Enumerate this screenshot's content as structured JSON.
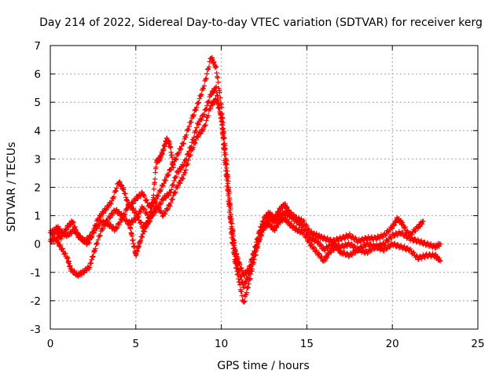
{
  "chart_data": {
    "type": "scatter",
    "title": "Day 214 of 2022, Sidereal Day-to-day VTEC variation (SDTVAR) for receiver kerg",
    "xlabel": "GPS time / hours",
    "ylabel": "SDTVAR / TECUs",
    "xlim": [
      0,
      25
    ],
    "ylim": [
      -3,
      7
    ],
    "xticks": [
      0,
      5,
      10,
      15,
      20,
      25
    ],
    "yticks": [
      -3,
      -2,
      -1,
      0,
      1,
      2,
      3,
      4,
      5,
      6,
      7
    ],
    "grid": true,
    "marker": "+",
    "color": "#ff0000",
    "series": [
      {
        "name": "track-a",
        "points": [
          [
            0.0,
            0.4
          ],
          [
            0.3,
            0.5
          ],
          [
            0.6,
            0.2
          ],
          [
            1.0,
            0.6
          ],
          [
            1.3,
            0.8
          ],
          [
            1.6,
            0.3
          ],
          [
            2.0,
            0.1
          ],
          [
            2.4,
            0.3
          ],
          [
            2.8,
            0.9
          ],
          [
            3.2,
            1.2
          ],
          [
            3.6,
            1.5
          ],
          [
            4.0,
            2.2
          ],
          [
            4.3,
            1.9
          ],
          [
            4.6,
            1.3
          ],
          [
            5.0,
            1.6
          ],
          [
            5.4,
            1.8
          ],
          [
            5.8,
            1.3
          ],
          [
            6.2,
            1.6
          ],
          [
            6.6,
            2.1
          ],
          [
            7.0,
            2.6
          ],
          [
            7.4,
            3.1
          ],
          [
            7.8,
            3.6
          ],
          [
            8.2,
            4.3
          ],
          [
            8.6,
            4.9
          ],
          [
            9.0,
            5.6
          ],
          [
            9.4,
            6.6
          ],
          [
            9.7,
            6.2
          ],
          [
            10.0,
            4.9
          ],
          [
            10.2,
            3.6
          ],
          [
            10.4,
            2.2
          ],
          [
            10.6,
            0.8
          ],
          [
            10.8,
            -0.2
          ],
          [
            11.0,
            -0.6
          ],
          [
            11.3,
            -1.1
          ],
          [
            11.6,
            -0.9
          ],
          [
            11.9,
            -0.3
          ],
          [
            12.2,
            0.4
          ],
          [
            12.5,
            0.9
          ],
          [
            12.8,
            1.1
          ],
          [
            13.1,
            0.9
          ],
          [
            13.4,
            1.2
          ],
          [
            13.7,
            1.4
          ],
          [
            14.0,
            1.1
          ],
          [
            14.4,
            0.9
          ],
          [
            14.8,
            0.8
          ],
          [
            15.2,
            0.4
          ],
          [
            15.6,
            0.3
          ],
          [
            16.0,
            0.2
          ],
          [
            16.5,
            0.1
          ],
          [
            17.0,
            0.2
          ],
          [
            17.5,
            0.3
          ],
          [
            18.0,
            0.1
          ],
          [
            18.5,
            0.2
          ],
          [
            19.0,
            0.2
          ],
          [
            19.5,
            0.3
          ],
          [
            20.0,
            0.6
          ],
          [
            20.3,
            0.9
          ],
          [
            20.6,
            0.7
          ],
          [
            21.0,
            0.3
          ],
          [
            21.5,
            0.6
          ],
          [
            21.8,
            0.8
          ]
        ]
      },
      {
        "name": "track-b",
        "points": [
          [
            0.0,
            0.1
          ],
          [
            0.3,
            0.2
          ],
          [
            0.6,
            -0.1
          ],
          [
            1.0,
            -0.5
          ],
          [
            1.2,
            -0.9
          ],
          [
            1.6,
            -1.1
          ],
          [
            1.9,
            -1.0
          ],
          [
            2.3,
            -0.8
          ],
          [
            2.6,
            -0.2
          ],
          [
            3.0,
            0.5
          ],
          [
            3.4,
            0.9
          ],
          [
            3.8,
            1.2
          ],
          [
            4.2,
            1.0
          ],
          [
            4.6,
            0.7
          ],
          [
            5.0,
            0.9
          ],
          [
            5.4,
            1.3
          ],
          [
            5.8,
            0.9
          ],
          [
            6.2,
            1.2
          ],
          [
            6.6,
            1.6
          ],
          [
            7.0,
            1.8
          ],
          [
            7.4,
            2.5
          ],
          [
            7.8,
            2.8
          ],
          [
            8.2,
            3.4
          ],
          [
            8.6,
            4.2
          ],
          [
            9.0,
            4.6
          ],
          [
            9.4,
            5.3
          ],
          [
            9.7,
            5.5
          ],
          [
            10.0,
            4.4
          ],
          [
            10.2,
            3.0
          ],
          [
            10.4,
            1.7
          ],
          [
            10.6,
            0.3
          ],
          [
            10.8,
            -0.6
          ],
          [
            11.0,
            -1.2
          ],
          [
            11.3,
            -2.1
          ],
          [
            11.6,
            -1.4
          ],
          [
            11.9,
            -0.6
          ],
          [
            12.2,
            0.1
          ],
          [
            12.5,
            0.6
          ],
          [
            12.8,
            0.7
          ],
          [
            13.1,
            0.5
          ],
          [
            13.4,
            0.8
          ],
          [
            13.7,
            0.9
          ],
          [
            14.0,
            0.7
          ],
          [
            14.4,
            0.5
          ],
          [
            14.8,
            0.4
          ],
          [
            15.2,
            0.0
          ],
          [
            15.6,
            -0.3
          ],
          [
            16.0,
            -0.6
          ],
          [
            16.3,
            -0.3
          ],
          [
            16.7,
            -0.1
          ],
          [
            17.0,
            -0.3
          ],
          [
            17.5,
            -0.4
          ],
          [
            18.0,
            -0.2
          ],
          [
            18.5,
            -0.3
          ],
          [
            19.0,
            -0.1
          ],
          [
            19.5,
            -0.2
          ],
          [
            20.0,
            0.0
          ],
          [
            20.5,
            -0.1
          ],
          [
            21.0,
            -0.2
          ],
          [
            21.5,
            -0.5
          ],
          [
            22.0,
            -0.4
          ],
          [
            22.5,
            -0.4
          ],
          [
            22.8,
            -0.6
          ]
        ]
      },
      {
        "name": "track-c",
        "points": [
          [
            0.1,
            0.3
          ],
          [
            0.4,
            0.6
          ],
          [
            0.7,
            0.4
          ],
          [
            1.0,
            0.3
          ],
          [
            1.4,
            0.5
          ],
          [
            1.8,
            0.2
          ],
          [
            2.2,
            0.0
          ],
          [
            2.6,
            0.5
          ],
          [
            3.0,
            0.8
          ],
          [
            3.4,
            0.7
          ],
          [
            3.8,
            0.5
          ],
          [
            4.2,
            0.9
          ],
          [
            4.6,
            1.4
          ],
          [
            5.0,
            1.1
          ],
          [
            5.4,
            0.6
          ],
          [
            5.8,
            0.8
          ],
          [
            6.2,
            1.4
          ],
          [
            6.6,
            1.0
          ],
          [
            7.0,
            1.4
          ],
          [
            7.4,
            2.0
          ],
          [
            7.8,
            2.4
          ],
          [
            8.2,
            3.2
          ],
          [
            8.6,
            3.8
          ],
          [
            9.0,
            4.1
          ],
          [
            9.4,
            4.9
          ],
          [
            9.7,
            5.1
          ],
          [
            10.0,
            4.5
          ],
          [
            10.2,
            3.3
          ],
          [
            10.4,
            2.0
          ],
          [
            10.6,
            0.6
          ],
          [
            10.8,
            -0.4
          ],
          [
            11.0,
            -0.9
          ],
          [
            11.3,
            -1.5
          ],
          [
            11.6,
            -1.1
          ],
          [
            11.9,
            -0.4
          ],
          [
            12.2,
            0.2
          ],
          [
            12.5,
            0.7
          ],
          [
            12.8,
            0.9
          ],
          [
            13.1,
            0.8
          ],
          [
            13.4,
            1.0
          ],
          [
            13.7,
            1.1
          ],
          [
            14.0,
            1.0
          ],
          [
            14.4,
            0.8
          ],
          [
            14.8,
            0.6
          ],
          [
            15.2,
            0.2
          ],
          [
            15.6,
            0.1
          ],
          [
            16.0,
            -0.2
          ],
          [
            16.5,
            0.0
          ],
          [
            17.0,
            -0.1
          ],
          [
            17.5,
            0.0
          ],
          [
            18.0,
            -0.2
          ],
          [
            18.5,
            0.0
          ],
          [
            19.0,
            -0.1
          ],
          [
            19.5,
            0.0
          ],
          [
            20.0,
            0.3
          ],
          [
            20.5,
            0.4
          ],
          [
            21.0,
            0.2
          ],
          [
            21.5,
            0.1
          ],
          [
            22.0,
            0.0
          ],
          [
            22.5,
            -0.1
          ],
          [
            22.8,
            0.0
          ]
        ]
      },
      {
        "name": "track-d",
        "points": [
          [
            4.6,
            0.8
          ],
          [
            4.8,
            0.2
          ],
          [
            5.0,
            -0.4
          ],
          [
            5.2,
            0.0
          ],
          [
            5.5,
            0.5
          ],
          [
            5.8,
            0.9
          ],
          [
            6.0,
            1.5
          ],
          [
            6.2,
            2.9
          ],
          [
            6.4,
            3.0
          ],
          [
            6.6,
            3.3
          ],
          [
            6.8,
            3.7
          ],
          [
            7.0,
            3.5
          ],
          [
            7.2,
            2.7
          ]
        ]
      }
    ]
  }
}
